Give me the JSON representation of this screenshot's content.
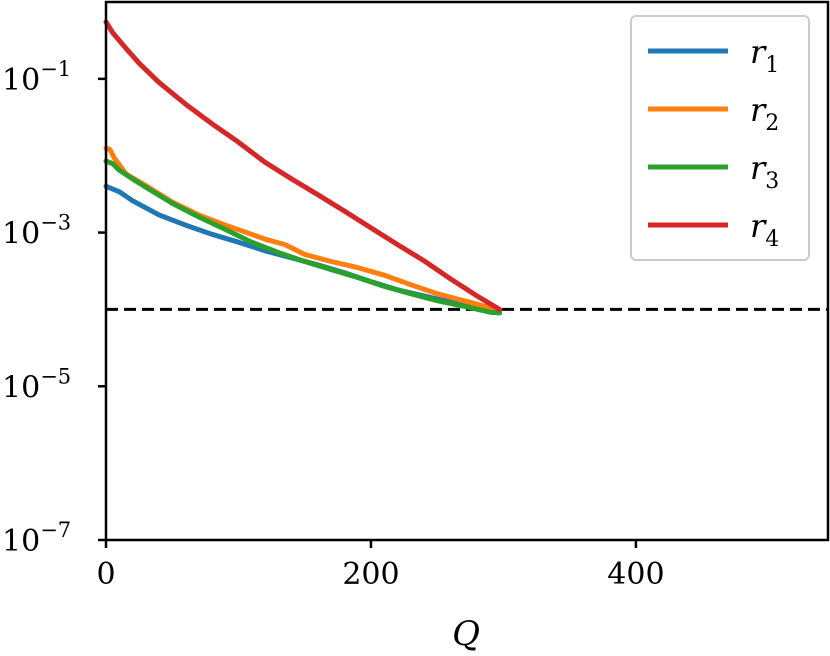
{
  "chart_data": {
    "type": "line",
    "title": "",
    "xlabel": "Q",
    "ylabel": "",
    "xlim": [
      0,
      545
    ],
    "ylim": [
      1e-07,
      1
    ],
    "yscale": "log",
    "grid": false,
    "legend_position": "top-right",
    "x_ticks": [
      {
        "value": 0,
        "label": "0"
      },
      {
        "value": 200,
        "label": "200"
      },
      {
        "value": 400,
        "label": "400"
      }
    ],
    "y_ticks": [
      {
        "value": 1e-07,
        "base": "10",
        "exponent": "−7"
      },
      {
        "value": 1e-05,
        "base": "10",
        "exponent": "−5"
      },
      {
        "value": 0.001,
        "base": "10",
        "exponent": "−3"
      },
      {
        "value": 0.1,
        "base": "10",
        "exponent": "−1"
      }
    ],
    "reference_line": {
      "y": 0.0001,
      "style": "dashed",
      "color": "#000000"
    },
    "series": [
      {
        "name": "r",
        "subscript": "1",
        "color": "#1f77b4",
        "points": [
          [
            0,
            0.004
          ],
          [
            10,
            0.0034
          ],
          [
            20,
            0.0026
          ],
          [
            40,
            0.0017
          ],
          [
            60,
            0.00125
          ],
          [
            80,
            0.00095
          ],
          [
            100,
            0.00075
          ],
          [
            120,
            0.00058
          ],
          [
            140,
            0.00047
          ],
          [
            160,
            0.00038
          ],
          [
            180,
            0.0003
          ],
          [
            200,
            0.00023
          ],
          [
            220,
            0.00018
          ],
          [
            240,
            0.00015
          ],
          [
            260,
            0.000125
          ],
          [
            280,
            0.000105
          ],
          [
            297,
            9e-05
          ]
        ]
      },
      {
        "name": "r",
        "subscript": "2",
        "color": "#ff7f0e",
        "points": [
          [
            0,
            0.0125
          ],
          [
            3,
            0.012
          ],
          [
            6,
            0.0095
          ],
          [
            15,
            0.0058
          ],
          [
            30,
            0.0041
          ],
          [
            50,
            0.0025
          ],
          [
            70,
            0.0017
          ],
          [
            90,
            0.00125
          ],
          [
            110,
            0.00095
          ],
          [
            120,
            0.00082
          ],
          [
            135,
            0.0007
          ],
          [
            150,
            0.00052
          ],
          [
            170,
            0.00042
          ],
          [
            190,
            0.00035
          ],
          [
            210,
            0.00028
          ],
          [
            230,
            0.00021
          ],
          [
            250,
            0.00016
          ],
          [
            270,
            0.00013
          ],
          [
            290,
            0.000105
          ],
          [
            297,
            9.5e-05
          ]
        ]
      },
      {
        "name": "r",
        "subscript": "3",
        "color": "#2ca02c",
        "points": [
          [
            0,
            0.0085
          ],
          [
            5,
            0.0079
          ],
          [
            10,
            0.0065
          ],
          [
            20,
            0.005
          ],
          [
            30,
            0.0039
          ],
          [
            50,
            0.0024
          ],
          [
            70,
            0.0016
          ],
          [
            90,
            0.0011
          ],
          [
            110,
            0.00075
          ],
          [
            130,
            0.00055
          ],
          [
            150,
            0.00042
          ],
          [
            170,
            0.00033
          ],
          [
            190,
            0.00026
          ],
          [
            210,
            0.0002
          ],
          [
            230,
            0.00016
          ],
          [
            250,
            0.00013
          ],
          [
            270,
            0.00011
          ],
          [
            290,
            9.2e-05
          ],
          [
            297,
            9e-05
          ]
        ]
      },
      {
        "name": "r",
        "subscript": "4",
        "color": "#d62728",
        "points": [
          [
            0,
            0.55
          ],
          [
            5,
            0.4
          ],
          [
            15,
            0.25
          ],
          [
            25,
            0.16
          ],
          [
            40,
            0.09
          ],
          [
            60,
            0.047
          ],
          [
            80,
            0.026
          ],
          [
            100,
            0.015
          ],
          [
            120,
            0.0082
          ],
          [
            140,
            0.005
          ],
          [
            160,
            0.0031
          ],
          [
            180,
            0.0019
          ],
          [
            200,
            0.00115
          ],
          [
            220,
            0.0007
          ],
          [
            240,
            0.00043
          ],
          [
            260,
            0.00025
          ],
          [
            280,
            0.00015
          ],
          [
            297,
            0.0001
          ]
        ]
      }
    ]
  }
}
